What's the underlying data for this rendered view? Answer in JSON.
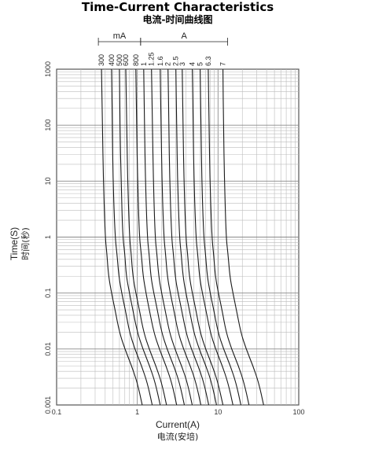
{
  "chart_data": {
    "type": "line",
    "title": "Time-Current Characteristics",
    "subtitle": "电流-时间曲线图",
    "xlabel": "Current(A)",
    "xlabel_cn": "电流(安培)",
    "ylabel": "Time(S)",
    "ylabel_cn": "时间(秒)",
    "x_scale": "log",
    "y_scale": "log",
    "xlim": [
      0.1,
      100
    ],
    "ylim": [
      0.001,
      1000
    ],
    "x_ticks": [
      "0.1",
      "1",
      "10",
      "100"
    ],
    "y_ticks": [
      "0.001",
      "0.01",
      "0.1",
      "1",
      "10",
      "100",
      "1000"
    ],
    "grid": true,
    "rating_groups": [
      {
        "label": "mA",
        "from": "300",
        "to": "800"
      },
      {
        "label": "A",
        "from": "1",
        "to": "7"
      }
    ],
    "series": [
      {
        "name": "300",
        "x": [
          0.36,
          0.37,
          0.38,
          0.4,
          0.42,
          0.44,
          0.48,
          0.53,
          0.6,
          0.7,
          0.85,
          1.0,
          1.15
        ],
        "y": [
          1000,
          100,
          10,
          1,
          0.5,
          0.2,
          0.1,
          0.05,
          0.02,
          0.01,
          0.005,
          0.0025,
          0.001
        ]
      },
      {
        "name": "400",
        "x": [
          0.48,
          0.49,
          0.5,
          0.53,
          0.56,
          0.59,
          0.64,
          0.71,
          0.8,
          0.93,
          1.13,
          1.33,
          1.53
        ],
        "y": [
          1000,
          100,
          10,
          1,
          0.5,
          0.2,
          0.1,
          0.05,
          0.02,
          0.01,
          0.005,
          0.0025,
          0.001
        ]
      },
      {
        "name": "500",
        "x": [
          0.6,
          0.61,
          0.63,
          0.66,
          0.7,
          0.73,
          0.8,
          0.88,
          1.0,
          1.17,
          1.42,
          1.67,
          1.92
        ],
        "y": [
          1000,
          100,
          10,
          1,
          0.5,
          0.2,
          0.1,
          0.05,
          0.02,
          0.01,
          0.005,
          0.0025,
          0.001
        ]
      },
      {
        "name": "600",
        "x": [
          0.72,
          0.74,
          0.76,
          0.8,
          0.84,
          0.88,
          0.96,
          1.06,
          1.2,
          1.4,
          1.7,
          2.0,
          2.3
        ],
        "y": [
          1000,
          100,
          10,
          1,
          0.5,
          0.2,
          0.1,
          0.05,
          0.02,
          0.01,
          0.005,
          0.0025,
          0.001
        ]
      },
      {
        "name": "800",
        "x": [
          0.96,
          0.98,
          1.01,
          1.06,
          1.12,
          1.18,
          1.28,
          1.41,
          1.6,
          1.87,
          2.27,
          2.67,
          3.07
        ],
        "y": [
          1000,
          100,
          10,
          1,
          0.5,
          0.2,
          0.1,
          0.05,
          0.02,
          0.01,
          0.005,
          0.0025,
          0.001
        ]
      },
      {
        "name": "1",
        "x": [
          1.2,
          1.23,
          1.26,
          1.33,
          1.4,
          1.47,
          1.6,
          1.77,
          2.0,
          2.33,
          2.83,
          3.33,
          3.83
        ],
        "y": [
          1000,
          100,
          10,
          1,
          0.5,
          0.2,
          0.1,
          0.05,
          0.02,
          0.01,
          0.005,
          0.0025,
          0.001
        ]
      },
      {
        "name": "1.25",
        "x": [
          1.5,
          1.54,
          1.58,
          1.66,
          1.75,
          1.84,
          2.0,
          2.21,
          2.5,
          2.92,
          3.54,
          4.17,
          4.79
        ],
        "y": [
          1000,
          100,
          10,
          1,
          0.5,
          0.2,
          0.1,
          0.05,
          0.02,
          0.01,
          0.005,
          0.0025,
          0.001
        ]
      },
      {
        "name": "1.6",
        "x": [
          1.92,
          1.97,
          2.02,
          2.13,
          2.24,
          2.35,
          2.56,
          2.83,
          3.2,
          3.73,
          4.53,
          5.33,
          6.13
        ],
        "y": [
          1000,
          100,
          10,
          1,
          0.5,
          0.2,
          0.1,
          0.05,
          0.02,
          0.01,
          0.005,
          0.0025,
          0.001
        ]
      },
      {
        "name": "2",
        "x": [
          2.4,
          2.46,
          2.52,
          2.66,
          2.8,
          2.94,
          3.2,
          3.54,
          4.0,
          4.67,
          5.67,
          6.67,
          7.67
        ],
        "y": [
          1000,
          100,
          10,
          1,
          0.5,
          0.2,
          0.1,
          0.05,
          0.02,
          0.01,
          0.005,
          0.0025,
          0.001
        ]
      },
      {
        "name": "2.5",
        "x": [
          3.0,
          3.08,
          3.15,
          3.33,
          3.5,
          3.68,
          4.0,
          4.42,
          5.0,
          5.83,
          7.08,
          8.33,
          9.58
        ],
        "y": [
          1000,
          100,
          10,
          1,
          0.5,
          0.2,
          0.1,
          0.05,
          0.02,
          0.01,
          0.005,
          0.0025,
          0.001
        ]
      },
      {
        "name": "3",
        "x": [
          3.6,
          3.69,
          3.78,
          3.99,
          4.2,
          4.41,
          4.8,
          5.31,
          6.0,
          7.0,
          8.5,
          10.0,
          11.5
        ],
        "y": [
          1000,
          100,
          10,
          1,
          0.5,
          0.2,
          0.1,
          0.05,
          0.02,
          0.01,
          0.005,
          0.0025,
          0.001
        ]
      },
      {
        "name": "4",
        "x": [
          4.8,
          4.92,
          5.04,
          5.32,
          5.6,
          5.88,
          6.4,
          7.08,
          8.0,
          9.33,
          11.3,
          13.3,
          15.3
        ],
        "y": [
          1000,
          100,
          10,
          1,
          0.5,
          0.2,
          0.1,
          0.05,
          0.02,
          0.01,
          0.005,
          0.0025,
          0.001
        ]
      },
      {
        "name": "5",
        "x": [
          6.0,
          6.15,
          6.3,
          6.65,
          7.0,
          7.35,
          8.0,
          8.85,
          10.0,
          11.7,
          14.2,
          16.7,
          19.2
        ],
        "y": [
          1000,
          100,
          10,
          1,
          0.5,
          0.2,
          0.1,
          0.05,
          0.02,
          0.01,
          0.005,
          0.0025,
          0.001
        ]
      },
      {
        "name": "6.3",
        "x": [
          7.56,
          7.75,
          7.94,
          8.38,
          8.82,
          9.26,
          10.1,
          11.2,
          12.6,
          14.7,
          17.9,
          21.0,
          24.2
        ],
        "y": [
          1000,
          100,
          10,
          1,
          0.5,
          0.2,
          0.1,
          0.05,
          0.02,
          0.01,
          0.005,
          0.0025,
          0.001
        ]
      },
      {
        "name": "7",
        "x": [
          11.5,
          11.7,
          12.0,
          12.6,
          13.3,
          14.0,
          15.3,
          16.9,
          19.1,
          22.3,
          27.1,
          31.9,
          36.7
        ],
        "y": [
          1000,
          100,
          10,
          1,
          0.5,
          0.2,
          0.1,
          0.05,
          0.02,
          0.01,
          0.005,
          0.0025,
          0.001
        ]
      }
    ]
  }
}
